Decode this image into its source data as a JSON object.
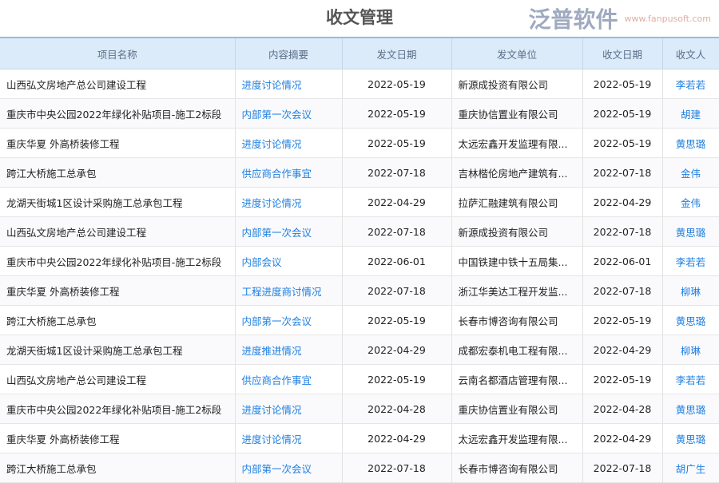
{
  "title": "收文管理",
  "columns": [
    "项目名称",
    "内容摘要",
    "发文日期",
    "发文单位",
    "收文日期",
    "收文人"
  ],
  "rows": [
    [
      "山西弘文房地产总公司建设工程",
      "进度讨论情况",
      "2022-05-19",
      "新源成投资有限公司",
      "2022-05-19",
      "李若若"
    ],
    [
      "重庆市中央公园2022年绿化补贴项目-施工2标段",
      "内部第一次会议",
      "2022-05-19",
      "重庆协信置业有限公司",
      "2022-05-19",
      "胡建"
    ],
    [
      "重庆华夏 外高桥装修工程",
      "进度讨论情况",
      "2022-05-19",
      "太远宏鑫开发监理有限...",
      "2022-05-19",
      "黄思璐"
    ],
    [
      "跨江大桥施工总承包",
      "供应商合作事宜",
      "2022-07-18",
      "吉林楷伦房地产建筑有...",
      "2022-07-18",
      "金伟"
    ],
    [
      "龙湖天街城1区设计采购施工总承包工程",
      "进度讨论情况",
      "2022-04-29",
      "拉萨汇融建筑有限公司",
      "2022-04-29",
      "金伟"
    ],
    [
      "山西弘文房地产总公司建设工程",
      "内部第一次会议",
      "2022-07-18",
      "新源成投资有限公司",
      "2022-07-18",
      "黄思璐"
    ],
    [
      "重庆市中央公园2022年绿化补贴项目-施工2标段",
      "内部会议",
      "2022-06-01",
      "中国铁建中铁十五局集...",
      "2022-06-01",
      "李若若"
    ],
    [
      "重庆华夏 外高桥装修工程",
      "工程进度商讨情况",
      "2022-07-18",
      "浙江华美达工程开发监...",
      "2022-07-18",
      "柳琳"
    ],
    [
      "跨江大桥施工总承包",
      "内部第一次会议",
      "2022-05-19",
      "长春市博咨询有限公司",
      "2022-05-19",
      "黄思璐"
    ],
    [
      "龙湖天街城1区设计采购施工总承包工程",
      "进度推进情况",
      "2022-04-29",
      "成都宏泰机电工程有限...",
      "2022-04-29",
      "柳琳"
    ],
    [
      "山西弘文房地产总公司建设工程",
      "供应商合作事宜",
      "2022-05-19",
      "云南名都酒店管理有限...",
      "2022-05-19",
      "李若若"
    ],
    [
      "重庆市中央公园2022年绿化补贴项目-施工2标段",
      "进度讨论情况",
      "2022-04-28",
      "重庆协信置业有限公司",
      "2022-04-28",
      "黄思璐"
    ],
    [
      "重庆华夏 外高桥装修工程",
      "进度讨论情况",
      "2022-04-29",
      "太远宏鑫开发监理有限...",
      "2022-04-29",
      "黄思璐"
    ],
    [
      "跨江大桥施工总承包",
      "内部第一次会议",
      "2022-07-18",
      "长春市博咨询有限公司",
      "2022-07-18",
      "胡广生"
    ]
  ],
  "watermark": {
    "text": "泛普软件",
    "url": "www.fanpusoft.com"
  },
  "colors": {
    "link": "#1e7fe0",
    "header_bg": "#dcebfa"
  }
}
